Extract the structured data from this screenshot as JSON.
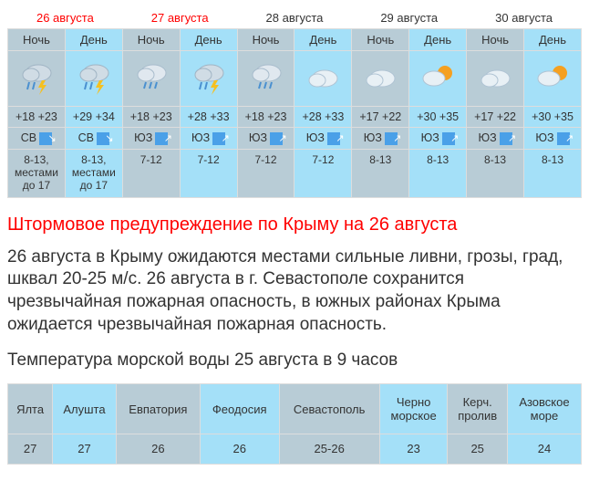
{
  "forecast": {
    "dates": [
      {
        "label": "26 августа",
        "weekend": true
      },
      {
        "label": "27 августа",
        "weekend": true
      },
      {
        "label": "28 августа",
        "weekend": false
      },
      {
        "label": "29 августа",
        "weekend": false
      },
      {
        "label": "30 августа",
        "weekend": false
      }
    ],
    "period_labels": {
      "night": "Ночь",
      "day": "День"
    },
    "columns": [
      {
        "period": "night",
        "icon": "rain-thunder",
        "temp": "+18 +23",
        "wind_dir": "СВ",
        "arrow": "sv",
        "wind_speed": "8-13, местами до 17"
      },
      {
        "period": "day",
        "icon": "rain-thunder",
        "temp": "+29 +34",
        "wind_dir": "СВ",
        "arrow": "sv",
        "wind_speed": "8-13, местами до 17"
      },
      {
        "period": "night",
        "icon": "cloud-rain",
        "temp": "+18 +23",
        "wind_dir": "ЮЗ",
        "arrow": "yuz",
        "wind_speed": "7-12"
      },
      {
        "period": "day",
        "icon": "rain-thunder",
        "temp": "+28 +33",
        "wind_dir": "ЮЗ",
        "arrow": "yuz",
        "wind_speed": "7-12"
      },
      {
        "period": "night",
        "icon": "cloud-rain",
        "temp": "+18 +23",
        "wind_dir": "ЮЗ",
        "arrow": "yuz",
        "wind_speed": "7-12"
      },
      {
        "period": "day",
        "icon": "cloud",
        "temp": "+28 +33",
        "wind_dir": "ЮЗ",
        "arrow": "yuz",
        "wind_speed": "7-12"
      },
      {
        "period": "night",
        "icon": "cloud",
        "temp": "+17 +22",
        "wind_dir": "ЮЗ",
        "arrow": "yuz",
        "wind_speed": "8-13"
      },
      {
        "period": "day",
        "icon": "cloud-sun",
        "temp": "+30 +35",
        "wind_dir": "ЮЗ",
        "arrow": "yuz",
        "wind_speed": "8-13"
      },
      {
        "period": "night",
        "icon": "cloud",
        "temp": "+17 +22",
        "wind_dir": "ЮЗ",
        "arrow": "yuz",
        "wind_speed": "8-13"
      },
      {
        "period": "day",
        "icon": "cloud-sun",
        "temp": "+30 +35",
        "wind_dir": "ЮЗ",
        "arrow": "yuz",
        "wind_speed": "8-13"
      }
    ]
  },
  "colors": {
    "night_bg": "#b8ccd6",
    "day_bg": "#a4e0f8",
    "weekend": "#ff0000",
    "weekday": "#333333",
    "arrow_bg": "#4aa0e8",
    "border": "#dddddd"
  },
  "warning": {
    "title": "Штормовое предупреждение по Крыму на 26 августа",
    "text": "26 августа в Крыму ожидаются местами сильные ливни, грозы, град, шквал 20-25 м/с. 26 августа в г. Севастополе сохранится чрезвычайная пожарная опасность, в южных районах Крыма ожидается чрезвычайная пожарная опасность."
  },
  "water": {
    "title": "Температура морской воды 25 августа в 9 часов",
    "locations": [
      "Ялта",
      "Алушта",
      "Евпатория",
      "Феодосия",
      "Севастополь",
      "Черно морское",
      "Керч. пролив",
      "Азовское море"
    ],
    "temps": [
      "27",
      "27",
      "26",
      "26",
      "25-26",
      "23",
      "25",
      "24"
    ]
  }
}
